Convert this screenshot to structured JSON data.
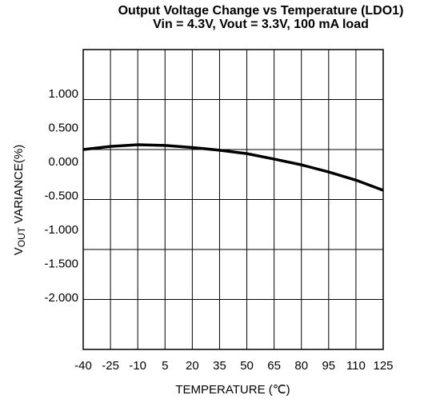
{
  "chart_data": {
    "type": "line",
    "title": "Output Voltage Change vs Temperature (LDO1)",
    "subtitle": "Vin = 4.3V, Vout = 3.3V, 100 mA load",
    "ylabel": [
      "V",
      "OUT",
      " VARIANCE(%)"
    ],
    "xlabel": "TEMPERATURE (℃)",
    "x": [
      -40,
      -25,
      -10,
      5,
      20,
      35,
      50,
      65,
      80,
      95,
      110,
      125
    ],
    "series": [
      {
        "name": "VOUT variance",
        "color": "#000000",
        "values": [
          0.19,
          0.235,
          0.26,
          0.25,
          0.22,
          0.18,
          0.13,
          0.05,
          -0.035,
          -0.14,
          -0.26,
          -0.41
        ]
      }
    ],
    "xlim": [
      -40,
      125
    ],
    "xticks": [
      -40,
      -25,
      -10,
      5,
      20,
      35,
      50,
      65,
      80,
      95,
      110,
      125
    ],
    "ylim": [
      -2.75,
      1.66
    ],
    "yticks": [
      {
        "value": 1,
        "label": "1.000"
      },
      {
        "value": 0.5,
        "label": "0.500"
      },
      {
        "value": 0,
        "label": "0.000"
      },
      {
        "value": -0.5,
        "label": "-0.500"
      },
      {
        "value": -1,
        "label": "-1.000"
      },
      {
        "value": -1.5,
        "label": "-1.500"
      },
      {
        "value": -2,
        "label": "-2.000"
      }
    ],
    "grid": true
  }
}
